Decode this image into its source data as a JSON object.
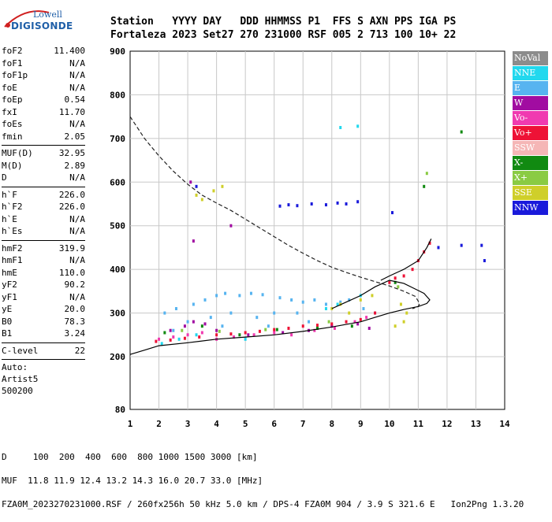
{
  "logo": {
    "line1": "Lowell",
    "line2": "DIGISONDE"
  },
  "header": {
    "line1": "Station   YYYY DAY   DDD HHMMSS P1  FFS S AXN PPS IGA PS",
    "line2": "Fortaleza 2023 Set27 270 231000 RSF 005 2 713 100 10+ 22"
  },
  "params": {
    "group1": [
      {
        "name": "foF2",
        "value": "11.400"
      },
      {
        "name": "foF1",
        "value": "N/A"
      },
      {
        "name": "foF1p",
        "value": "N/A"
      },
      {
        "name": "foE",
        "value": "N/A"
      },
      {
        "name": "foEp",
        "value": "0.54"
      },
      {
        "name": "fxI",
        "value": "11.70"
      },
      {
        "name": "foEs",
        "value": "N/A"
      },
      {
        "name": "fmin",
        "value": "2.05"
      }
    ],
    "group2": [
      {
        "name": "MUF(D)",
        "value": "32.95"
      },
      {
        "name": "M(D)",
        "value": "2.89"
      },
      {
        "name": "D",
        "value": "N/A"
      }
    ],
    "group3": [
      {
        "name": "h`F",
        "value": "226.0"
      },
      {
        "name": "h`F2",
        "value": "226.0"
      },
      {
        "name": "h`E",
        "value": "N/A"
      },
      {
        "name": "h`Es",
        "value": "N/A"
      }
    ],
    "group4": [
      {
        "name": "hmF2",
        "value": "319.9"
      },
      {
        "name": "hmF1",
        "value": "N/A"
      },
      {
        "name": "hmE",
        "value": "110.0"
      },
      {
        "name": "yF2",
        "value": "90.2"
      },
      {
        "name": "yF1",
        "value": "N/A"
      },
      {
        "name": "yE",
        "value": "20.0"
      },
      {
        "name": "B0",
        "value": "78.3"
      },
      {
        "name": "B1",
        "value": "3.24"
      }
    ],
    "clevel": {
      "name": "C-level",
      "value": "22"
    },
    "auto": [
      "Auto:",
      "Artist5",
      "500200"
    ]
  },
  "legend": [
    {
      "label": "NoVal",
      "color": "#8c8c8c"
    },
    {
      "label": "NNE",
      "color": "#22d8ee"
    },
    {
      "label": "E",
      "color": "#57b4f0"
    },
    {
      "label": "W",
      "color": "#a10ca1"
    },
    {
      "label": "Vo-",
      "color": "#f03ab0"
    },
    {
      "label": "Vo+",
      "color": "#ee1236"
    },
    {
      "label": "SSW",
      "color": "#f5b6b6"
    },
    {
      "label": "X-",
      "color": "#118a11"
    },
    {
      "label": "X+",
      "color": "#8acb43"
    },
    {
      "label": "SSE",
      "color": "#cfcf2a"
    },
    {
      "label": "NNW",
      "color": "#1a1adb"
    }
  ],
  "footer": {
    "line1": "D     100  200  400  600  800 1000 1500 3000 [km]",
    "line2": "MUF  11.8 11.9 12.4 13.2 14.3 16.0 20.7 33.0 [MHz]",
    "line3": "FZA0M_2023270231000.RSF / 260fx256h 50 kHz 5.0 km / DPS-4 FZA0M 904 / 3.9 S 321.6 E   Ion2Png 1.3.20"
  },
  "chart_data": {
    "type": "scatter",
    "xlim": [
      1,
      14
    ],
    "ylim": [
      80,
      900
    ],
    "x_ticks": [
      1,
      2,
      3,
      4,
      5,
      6,
      7,
      8,
      9,
      10,
      11,
      12,
      13,
      14
    ],
    "y_ticks": [
      80,
      200,
      300,
      400,
      500,
      600,
      700,
      800,
      900
    ],
    "grid": true,
    "legend_position": "right",
    "series": [
      {
        "name": "NNE",
        "color": "#22d8ee",
        "points": [
          [
            2.1,
            230
          ],
          [
            2.7,
            240
          ],
          [
            3.3,
            250
          ],
          [
            5.0,
            240
          ],
          [
            7.8,
            310
          ],
          [
            8.2,
            320
          ],
          [
            9.0,
            340
          ],
          [
            9.5,
            300
          ],
          [
            8.9,
            728
          ],
          [
            8.3,
            725
          ]
        ]
      },
      {
        "name": "E",
        "color": "#57b4f0",
        "points": [
          [
            2.2,
            300
          ],
          [
            2.6,
            310
          ],
          [
            3.2,
            320
          ],
          [
            3.6,
            330
          ],
          [
            4.0,
            340
          ],
          [
            4.3,
            345
          ],
          [
            4.8,
            340
          ],
          [
            5.2,
            345
          ],
          [
            5.6,
            342
          ],
          [
            6.2,
            335
          ],
          [
            6.6,
            330
          ],
          [
            7.0,
            325
          ],
          [
            7.4,
            330
          ],
          [
            7.8,
            320
          ],
          [
            8.3,
            325
          ],
          [
            8.6,
            330
          ],
          [
            9.1,
            310
          ],
          [
            3.0,
            280
          ],
          [
            3.8,
            290
          ],
          [
            4.5,
            300
          ],
          [
            5.4,
            290
          ],
          [
            6.0,
            300
          ],
          [
            6.8,
            300
          ],
          [
            2.5,
            260
          ],
          [
            4.2,
            270
          ],
          [
            5.8,
            270
          ],
          [
            7.2,
            280
          ]
        ]
      },
      {
        "name": "W",
        "color": "#a10ca1",
        "points": [
          [
            2.4,
            260
          ],
          [
            2.9,
            270
          ],
          [
            3.2,
            280
          ],
          [
            3.6,
            275
          ],
          [
            4.0,
            260
          ],
          [
            5.1,
            250
          ],
          [
            6.3,
            255
          ],
          [
            7.2,
            260
          ],
          [
            8.0,
            270
          ],
          [
            8.9,
            275
          ],
          [
            9.3,
            265
          ],
          [
            3.1,
            600
          ],
          [
            3.2,
            465
          ],
          [
            4.5,
            500
          ]
        ]
      },
      {
        "name": "Vo-",
        "color": "#f03ab0",
        "points": [
          [
            2.0,
            240
          ],
          [
            2.5,
            245
          ],
          [
            3.0,
            250
          ],
          [
            3.5,
            255
          ],
          [
            4.0,
            240
          ],
          [
            4.6,
            245
          ],
          [
            5.3,
            250
          ],
          [
            6.0,
            255
          ],
          [
            6.6,
            250
          ],
          [
            7.4,
            260
          ],
          [
            8.1,
            265
          ],
          [
            8.8,
            280
          ],
          [
            9.2,
            290
          ]
        ]
      },
      {
        "name": "Vo+",
        "color": "#ee1236",
        "points": [
          [
            1.9,
            235
          ],
          [
            2.4,
            238
          ],
          [
            2.9,
            242
          ],
          [
            3.4,
            245
          ],
          [
            4.0,
            250
          ],
          [
            4.5,
            252
          ],
          [
            5.0,
            255
          ],
          [
            5.5,
            258
          ],
          [
            6.0,
            262
          ],
          [
            6.5,
            265
          ],
          [
            7.0,
            270
          ],
          [
            7.5,
            272
          ],
          [
            8.0,
            275
          ],
          [
            8.5,
            280
          ],
          [
            9.0,
            285
          ],
          [
            9.5,
            300
          ],
          [
            10.0,
            370
          ],
          [
            10.2,
            380
          ],
          [
            10.5,
            385
          ],
          [
            10.8,
            400
          ],
          [
            11.0,
            420
          ],
          [
            11.2,
            440
          ],
          [
            11.4,
            460
          ]
        ]
      },
      {
        "name": "X-",
        "color": "#118a11",
        "points": [
          [
            2.2,
            255
          ],
          [
            3.5,
            270
          ],
          [
            4.8,
            250
          ],
          [
            6.1,
            262
          ],
          [
            7.5,
            265
          ],
          [
            8.7,
            270
          ],
          [
            10.2,
            370
          ],
          [
            12.5,
            715
          ],
          [
            11.2,
            590
          ]
        ]
      },
      {
        "name": "X+",
        "color": "#8acb43",
        "points": [
          [
            2.8,
            260
          ],
          [
            4.1,
            258
          ],
          [
            5.7,
            262
          ],
          [
            7.9,
            280
          ],
          [
            10.3,
            360
          ],
          [
            11.3,
            620
          ]
        ]
      },
      {
        "name": "SSE",
        "color": "#cfcf2a",
        "points": [
          [
            3.5,
            560
          ],
          [
            3.9,
            580
          ],
          [
            4.2,
            590
          ],
          [
            8.0,
            310
          ],
          [
            8.3,
            320
          ],
          [
            8.6,
            300
          ],
          [
            9.0,
            330
          ],
          [
            9.4,
            340
          ],
          [
            10.4,
            320
          ],
          [
            10.6,
            300
          ],
          [
            10.5,
            280
          ],
          [
            10.2,
            270
          ],
          [
            3.3,
            570
          ]
        ]
      },
      {
        "name": "NNW",
        "color": "#1a1adb",
        "points": [
          [
            6.2,
            545
          ],
          [
            6.5,
            548
          ],
          [
            6.8,
            546
          ],
          [
            7.3,
            550
          ],
          [
            7.8,
            548
          ],
          [
            8.2,
            552
          ],
          [
            8.5,
            550
          ],
          [
            8.9,
            555
          ],
          [
            10.1,
            530
          ],
          [
            12.5,
            455
          ],
          [
            13.2,
            455
          ],
          [
            13.3,
            420
          ],
          [
            3.3,
            590
          ],
          [
            11.7,
            450
          ]
        ]
      }
    ],
    "profile_dashed": [
      [
        1.0,
        750
      ],
      [
        1.5,
        700
      ],
      [
        2.0,
        660
      ],
      [
        2.5,
        625
      ],
      [
        3.0,
        595
      ],
      [
        3.5,
        570
      ],
      [
        4.0,
        552
      ],
      [
        4.5,
        535
      ],
      [
        5.0,
        515
      ],
      [
        5.5,
        495
      ],
      [
        6.0,
        475
      ],
      [
        6.5,
        455
      ],
      [
        7.0,
        437
      ],
      [
        7.5,
        420
      ],
      [
        8.0,
        405
      ],
      [
        8.5,
        393
      ],
      [
        9.0,
        382
      ],
      [
        9.5,
        372
      ],
      [
        10.0,
        362
      ],
      [
        10.5,
        350
      ],
      [
        10.9,
        338
      ],
      [
        11.05,
        322
      ],
      [
        11.0,
        315
      ],
      [
        10.8,
        310
      ]
    ],
    "trace_solid": [
      [
        1.0,
        205
      ],
      [
        1.5,
        215
      ],
      [
        2.0,
        225
      ],
      [
        3.0,
        232
      ],
      [
        4.0,
        240
      ],
      [
        5.0,
        245
      ],
      [
        6.0,
        250
      ],
      [
        7.0,
        258
      ],
      [
        8.0,
        268
      ],
      [
        9.0,
        280
      ],
      [
        9.5,
        290
      ],
      [
        10.0,
        300
      ],
      [
        10.5,
        308
      ],
      [
        11.0,
        315
      ],
      [
        11.3,
        322
      ],
      [
        11.4,
        330
      ],
      [
        11.2,
        345
      ],
      [
        10.9,
        355
      ],
      [
        10.5,
        368
      ],
      [
        10.0,
        375
      ],
      [
        9.5,
        360
      ],
      [
        9.0,
        340
      ],
      [
        8.5,
        325
      ],
      [
        8.0,
        310
      ]
    ],
    "trace_upper": [
      [
        9.7,
        375
      ],
      [
        10.0,
        385
      ],
      [
        10.5,
        400
      ],
      [
        11.0,
        420
      ],
      [
        11.3,
        450
      ],
      [
        11.45,
        470
      ]
    ]
  }
}
